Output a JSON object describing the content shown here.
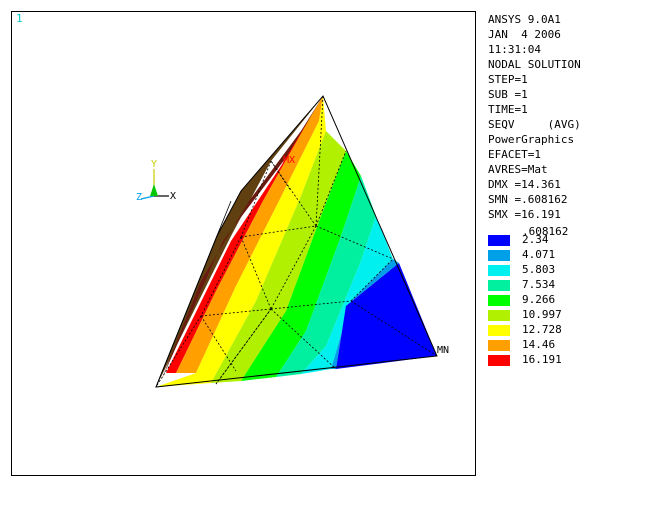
{
  "window_number": "1",
  "info_lines": [
    "ANSYS 9.0A1",
    "JAN  4 2006",
    "11:31:04",
    "NODAL SOLUTION",
    "STEP=1",
    "SUB =1",
    "TIME=1",
    "SEQV     (AVG)",
    "PowerGraphics",
    "EFACET=1",
    "AVRES=Mat",
    "DMX =14.361",
    "SMN =.608162",
    "SMX =16.191"
  ],
  "legend": {
    "min_value": ".608162",
    "bands": [
      {
        "color": "#0000ff",
        "label": "2.34"
      },
      {
        "color": "#00a0e8",
        "label": "4.071"
      },
      {
        "color": "#00f0f0",
        "label": "5.803"
      },
      {
        "color": "#00f0a0",
        "label": "7.534"
      },
      {
        "color": "#00ff00",
        "label": "9.266"
      },
      {
        "color": "#b0f000",
        "label": "10.997"
      },
      {
        "color": "#ffff00",
        "label": "12.728"
      },
      {
        "color": "#ffa000",
        "label": "14.46"
      },
      {
        "color": "#ff0000",
        "label": "16.191"
      }
    ]
  },
  "triad": {
    "x_label": "X",
    "y_label": "Y",
    "z_label": "Z"
  },
  "markers": {
    "min_label": "MN",
    "max_label": "MX"
  },
  "colors": {
    "dark_band": "#604010",
    "dark_max": "#6a1a10"
  }
}
